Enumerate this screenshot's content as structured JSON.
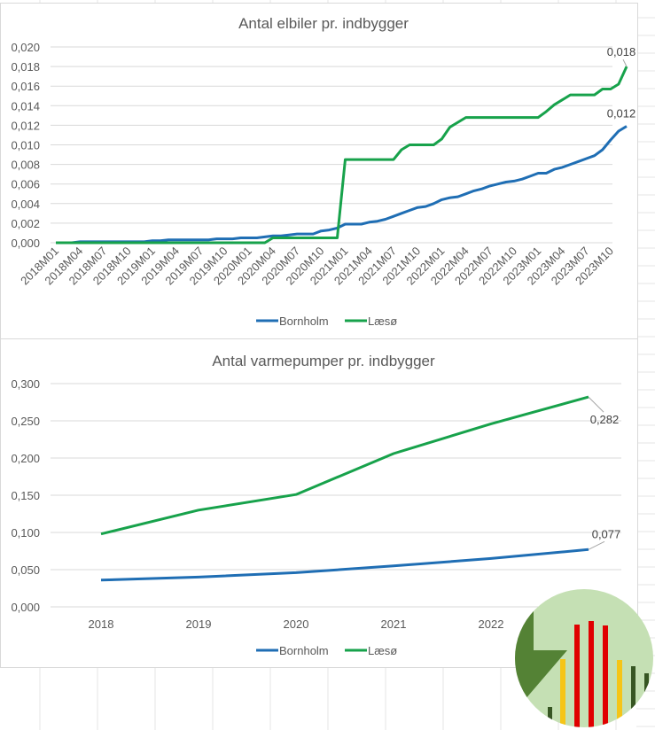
{
  "chart_data": [
    {
      "type": "line",
      "title": "Antal elbiler pr. indbygger",
      "xlabel": "",
      "ylabel": "",
      "ylim": [
        0,
        0.02
      ],
      "yticks": [
        "0,000",
        "0,002",
        "0,004",
        "0,006",
        "0,008",
        "0,010",
        "0,012",
        "0,014",
        "0,016",
        "0,018",
        "0,020"
      ],
      "ytick_values": [
        0,
        0.002,
        0.004,
        0.006,
        0.008,
        0.01,
        0.012,
        0.014,
        0.016,
        0.018,
        0.02
      ],
      "x": [
        "2018M01",
        "2018M02",
        "2018M03",
        "2018M04",
        "2018M05",
        "2018M06",
        "2018M07",
        "2018M08",
        "2018M09",
        "2018M10",
        "2018M11",
        "2018M12",
        "2019M01",
        "2019M02",
        "2019M03",
        "2019M04",
        "2019M05",
        "2019M06",
        "2019M07",
        "2019M08",
        "2019M09",
        "2019M10",
        "2019M11",
        "2019M12",
        "2020M01",
        "2020M02",
        "2020M03",
        "2020M04",
        "2020M05",
        "2020M06",
        "2020M07",
        "2020M08",
        "2020M09",
        "2020M10",
        "2020M11",
        "2020M12",
        "2021M01",
        "2021M02",
        "2021M03",
        "2021M04",
        "2021M05",
        "2021M06",
        "2021M07",
        "2021M08",
        "2021M09",
        "2021M10",
        "2021M11",
        "2021M12",
        "2022M01",
        "2022M02",
        "2022M03",
        "2022M04",
        "2022M05",
        "2022M06",
        "2022M07",
        "2022M08",
        "2022M09",
        "2022M10",
        "2022M11",
        "2022M12",
        "2023M01",
        "2023M02",
        "2023M03",
        "2023M04",
        "2023M05",
        "2023M06",
        "2023M07",
        "2023M08",
        "2023M09",
        "2023M10",
        "2023M11",
        "2023M12"
      ],
      "xtick_labels": [
        "2018M01",
        "2018M04",
        "2018M07",
        "2018M10",
        "2019M01",
        "2019M04",
        "2019M07",
        "2019M10",
        "2020M01",
        "2020M04",
        "2020M07",
        "2020M10",
        "2021M01",
        "2021M04",
        "2021M07",
        "2021M10",
        "2022M01",
        "2022M04",
        "2022M07",
        "2022M10",
        "2023M01",
        "2023M04",
        "2023M07",
        "2023M10"
      ],
      "series": [
        {
          "name": "Bornholm",
          "color": "#1f6eb4",
          "values": [
            0,
            0,
            0,
            0.0001,
            0.0001,
            0.0001,
            0.0001,
            0.0001,
            0.0001,
            0.0001,
            0.0001,
            0.0001,
            0.0002,
            0.0002,
            0.0003,
            0.0003,
            0.0003,
            0.0003,
            0.0003,
            0.0003,
            0.0004,
            0.0004,
            0.0004,
            0.0005,
            0.0005,
            0.0005,
            0.0006,
            0.0007,
            0.0007,
            0.0008,
            0.0009,
            0.0009,
            0.0009,
            0.0012,
            0.0013,
            0.0015,
            0.0019,
            0.0019,
            0.0019,
            0.0021,
            0.0022,
            0.0024,
            0.0027,
            0.003,
            0.0033,
            0.0036,
            0.0037,
            0.004,
            0.0044,
            0.0046,
            0.0047,
            0.005,
            0.0053,
            0.0055,
            0.0058,
            0.006,
            0.0062,
            0.0063,
            0.0065,
            0.0068,
            0.0071,
            0.0071,
            0.0075,
            0.0077,
            0.008,
            0.0083,
            0.0086,
            0.0089,
            0.0095,
            0.0105,
            0.0114,
            0.0119
          ],
          "end_label": "0,012"
        },
        {
          "name": "Læsø",
          "color": "#17a24b",
          "values": [
            0,
            0,
            0,
            0,
            0,
            0,
            0,
            0,
            0,
            0,
            0,
            0,
            0,
            0,
            0,
            0,
            0,
            0,
            0,
            0,
            0,
            0,
            0,
            0,
            0,
            0,
            0,
            0.0005,
            0.0005,
            0.0005,
            0.0005,
            0.0005,
            0.0005,
            0.0005,
            0.0005,
            0.0005,
            0.0085,
            0.0085,
            0.0085,
            0.0085,
            0.0085,
            0.0085,
            0.0085,
            0.0095,
            0.01,
            0.01,
            0.01,
            0.01,
            0.0106,
            0.0118,
            0.0123,
            0.0128,
            0.0128,
            0.0128,
            0.0128,
            0.0128,
            0.0128,
            0.0128,
            0.0128,
            0.0128,
            0.0128,
            0.0134,
            0.0141,
            0.0146,
            0.0151,
            0.0151,
            0.0151,
            0.0151,
            0.0157,
            0.0157,
            0.0162,
            0.018
          ],
          "end_label": "0,018"
        }
      ],
      "grid": true,
      "legend": "bottom"
    },
    {
      "type": "line",
      "title": "Antal varmepumper pr. indbygger",
      "xlabel": "",
      "ylabel": "",
      "ylim": [
        0,
        0.3
      ],
      "yticks": [
        "0,000",
        "0,050",
        "0,100",
        "0,150",
        "0,200",
        "0,250",
        "0,300"
      ],
      "ytick_values": [
        0,
        0.05,
        0.1,
        0.15,
        0.2,
        0.25,
        0.3
      ],
      "categories": [
        "2018",
        "2019",
        "2020",
        "2021",
        "2022",
        "2023"
      ],
      "visible_xtick_labels": [
        "2018",
        "2019",
        "2020",
        "2021",
        "2022"
      ],
      "series": [
        {
          "name": "Bornholm",
          "color": "#1f6eb4",
          "values": [
            0.036,
            0.04,
            0.046,
            0.055,
            0.065,
            0.077
          ],
          "end_label": "0,077"
        },
        {
          "name": "Læsø",
          "color": "#17a24b",
          "values": [
            0.098,
            0.13,
            0.151,
            0.206,
            0.246,
            0.282
          ],
          "end_label": "0,282"
        }
      ],
      "grid": true,
      "legend": "bottom"
    }
  ],
  "legend": {
    "bornholm": "Bornholm",
    "laeso": "Læsø"
  },
  "logo": {
    "icon": "bar-chart-logo-icon",
    "colors": {
      "background": "#c5e0b4",
      "pie": "#548235",
      "red": "#e00000",
      "yellow": "#f5c518",
      "dark": "#375623"
    }
  }
}
